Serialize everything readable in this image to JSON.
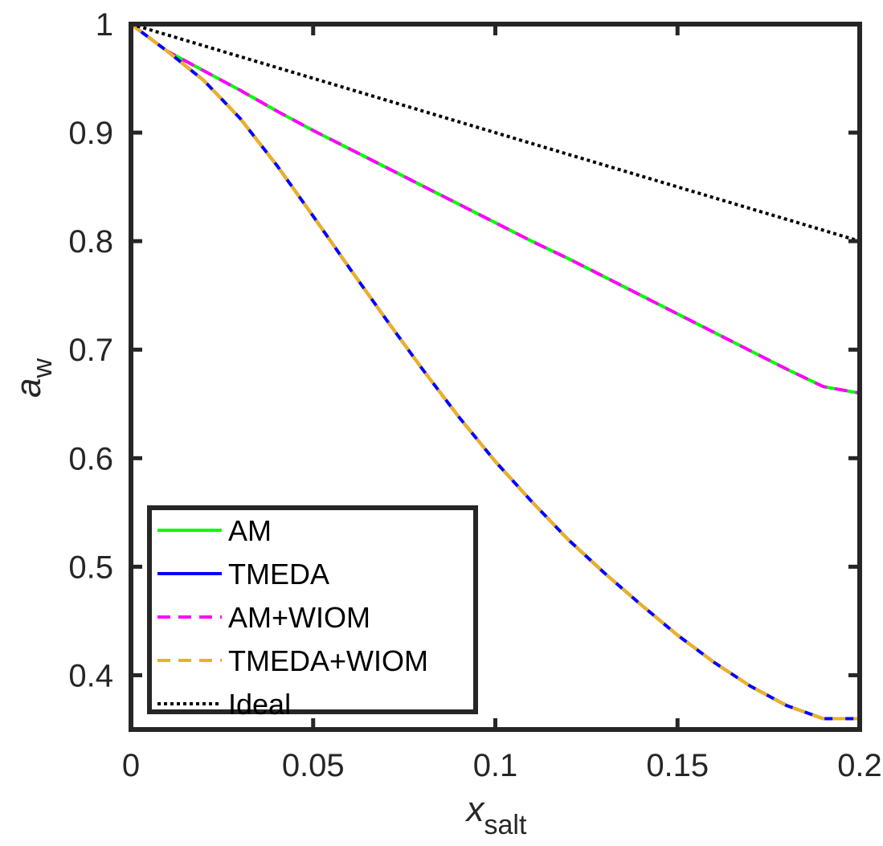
{
  "chart_data": {
    "type": "line",
    "xlabel": {
      "main": "x",
      "sub": "salt"
    },
    "ylabel": {
      "main": "a",
      "sub": "w"
    },
    "xlim": [
      0,
      0.2
    ],
    "ylim": [
      0.35,
      1.0
    ],
    "xticks": [
      0,
      0.05,
      0.1,
      0.15,
      0.2
    ],
    "xtick_labels": [
      "0",
      "0.05",
      "0.1",
      "0.15",
      "0.2"
    ],
    "yticks": [
      0.4,
      0.5,
      0.6,
      0.7,
      0.8,
      0.9,
      1.0
    ],
    "ytick_labels": [
      "0.4",
      "0.5",
      "0.6",
      "0.7",
      "0.8",
      "0.9",
      "1"
    ],
    "grid": false,
    "legend_placement": "bottom-left",
    "x": [
      0,
      0.01,
      0.02,
      0.03,
      0.04,
      0.05,
      0.06,
      0.07,
      0.08,
      0.09,
      0.1,
      0.11,
      0.12,
      0.13,
      0.14,
      0.15,
      0.16,
      0.17,
      0.18,
      0.19,
      0.2
    ],
    "series": [
      {
        "name": "AM",
        "color": "#00ff00",
        "style": "solid",
        "values": [
          1.0,
          0.975,
          0.957,
          0.939,
          0.92,
          0.902,
          0.885,
          0.868,
          0.851,
          0.834,
          0.817,
          0.8,
          0.784,
          0.767,
          0.75,
          0.733,
          0.716,
          0.699,
          0.682,
          0.666,
          0.66
        ]
      },
      {
        "name": "TMEDA",
        "color": "#0000ff",
        "style": "solid",
        "values": [
          1.0,
          0.975,
          0.948,
          0.913,
          0.87,
          0.823,
          0.775,
          0.728,
          0.682,
          0.638,
          0.597,
          0.56,
          0.525,
          0.494,
          0.465,
          0.437,
          0.412,
          0.39,
          0.372,
          0.36,
          0.36
        ]
      },
      {
        "name": "AM+WIOM",
        "color": "#ff00ff",
        "style": "dashed",
        "values": [
          1.0,
          0.975,
          0.957,
          0.939,
          0.92,
          0.902,
          0.885,
          0.868,
          0.851,
          0.834,
          0.817,
          0.8,
          0.784,
          0.767,
          0.75,
          0.733,
          0.716,
          0.699,
          0.682,
          0.666,
          0.66
        ]
      },
      {
        "name": "TMEDA+WIOM",
        "color": "#edb120",
        "style": "dashed",
        "values": [
          1.0,
          0.975,
          0.948,
          0.913,
          0.87,
          0.823,
          0.775,
          0.728,
          0.682,
          0.638,
          0.597,
          0.56,
          0.525,
          0.494,
          0.465,
          0.437,
          0.412,
          0.39,
          0.372,
          0.36,
          0.36
        ]
      },
      {
        "name": "Ideal",
        "color": "#000000",
        "style": "dotted",
        "values": [
          1.0,
          0.99,
          0.98,
          0.97,
          0.96,
          0.95,
          0.94,
          0.93,
          0.92,
          0.91,
          0.9,
          0.89,
          0.88,
          0.87,
          0.86,
          0.85,
          0.84,
          0.83,
          0.82,
          0.81,
          0.8
        ]
      }
    ]
  }
}
